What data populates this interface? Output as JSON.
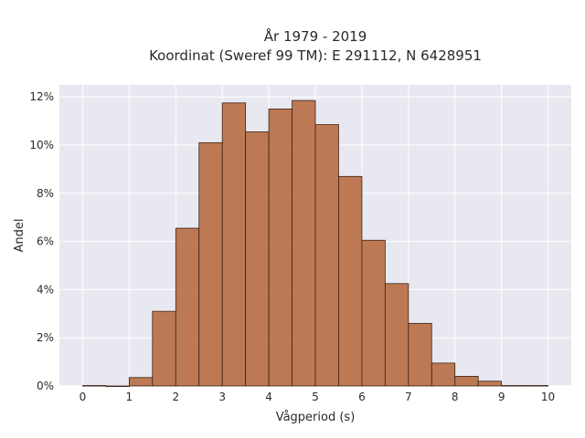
{
  "chart_data": {
    "type": "bar",
    "title_line1": "År 1979 - 2019",
    "title_line2": "Koordinat (Sweref 99 TM): E 291112, N 6428951",
    "xlabel": "Vågperiod (s)",
    "ylabel": "Andel",
    "xlim": [
      -0.5,
      10.5
    ],
    "ylim": [
      0,
      12.5
    ],
    "x_ticks": [
      "0",
      "1",
      "2",
      "3",
      "4",
      "5",
      "6",
      "7",
      "8",
      "9",
      "10"
    ],
    "y_ticks": [
      "0%",
      "2%",
      "4%",
      "6%",
      "8%",
      "10%",
      "12%"
    ],
    "bin_width": 0.5,
    "bins_start": [
      0,
      0.5,
      1,
      1.5,
      2,
      2.5,
      3,
      3.5,
      4,
      4.5,
      5,
      5.5,
      6,
      6.5,
      7,
      7.5,
      8,
      8.5,
      9,
      9.5
    ],
    "values": [
      0.02,
      0,
      0.35,
      3.1,
      6.55,
      10.1,
      11.75,
      10.55,
      11.5,
      11.85,
      10.85,
      8.7,
      6.05,
      4.25,
      2.6,
      0.95,
      0.4,
      0.2,
      0.02,
      0.02
    ],
    "bar_color": "#b5693c",
    "bar_edge": "#3d2418",
    "plot_bg": "#e8e8f0",
    "grid": true
  }
}
